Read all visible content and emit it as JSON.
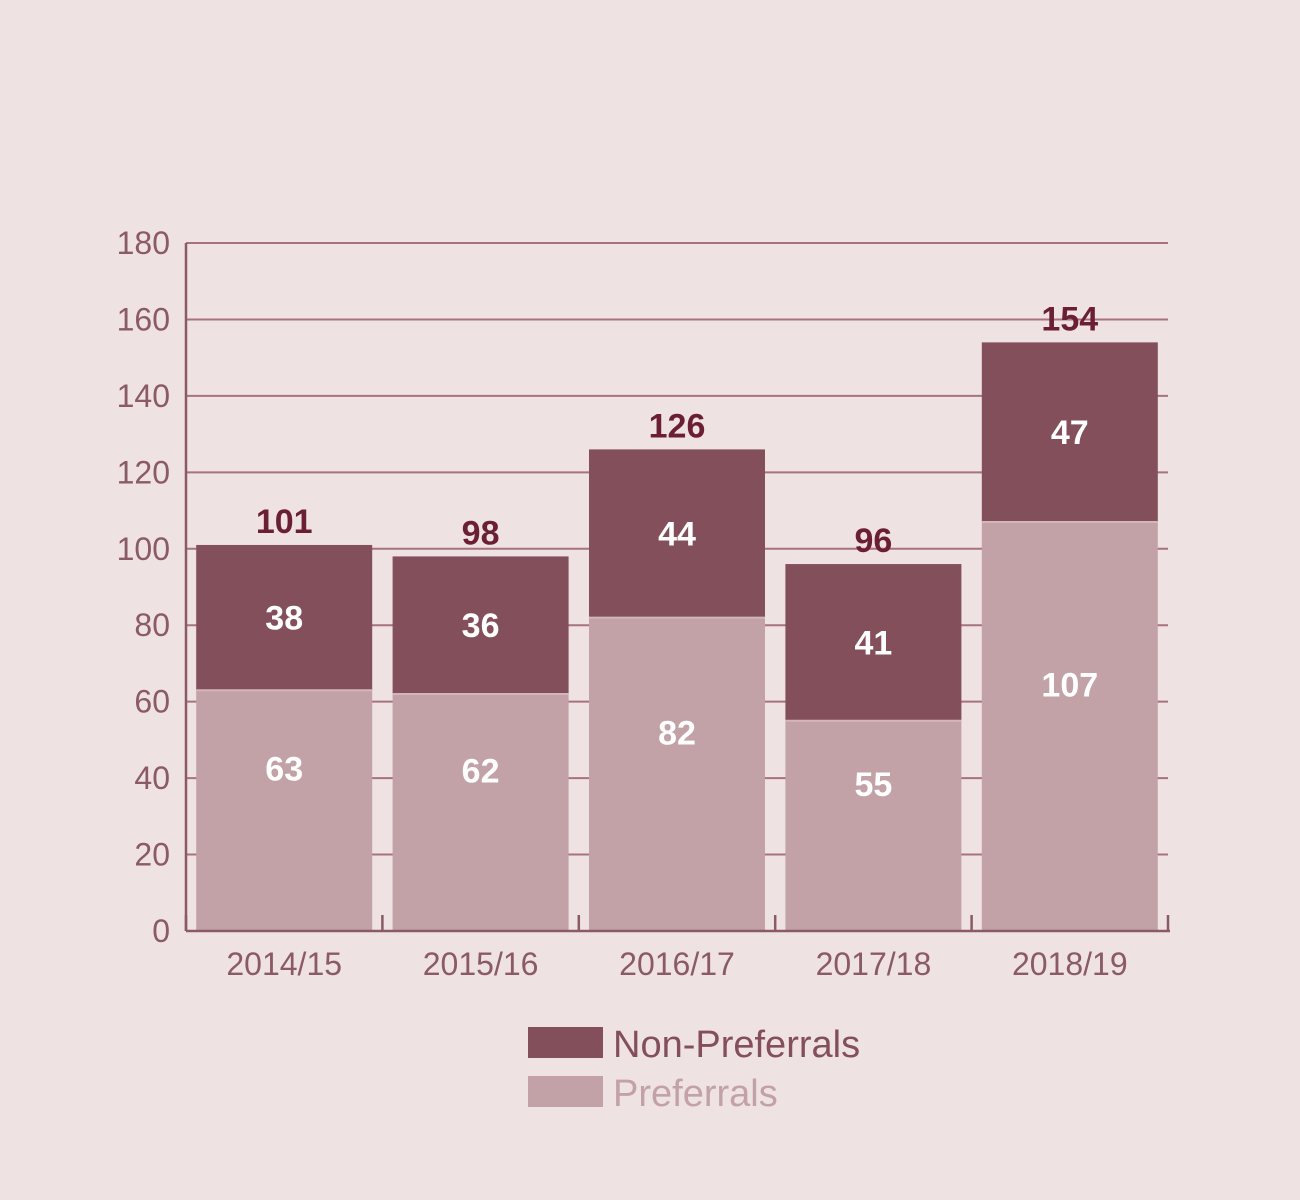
{
  "chart_data": {
    "type": "bar",
    "stacked": true,
    "categories": [
      "2014/15",
      "2015/16",
      "2016/17",
      "2017/18",
      "2018/19"
    ],
    "series": [
      {
        "name": "Preferrals",
        "values": [
          63,
          62,
          82,
          55,
          107
        ],
        "color": "#c2a2a7"
      },
      {
        "name": "Non-Preferrals",
        "values": [
          38,
          36,
          44,
          41,
          47
        ],
        "color": "#834f5b"
      }
    ],
    "totals": [
      101,
      98,
      126,
      96,
      154
    ],
    "ylim": [
      0,
      180
    ],
    "yticks": [
      0,
      20,
      40,
      60,
      80,
      100,
      120,
      140,
      160,
      180
    ],
    "grid": true,
    "legend": {
      "placement": "bottom-center",
      "items": [
        {
          "label": "Non-Preferrals",
          "color": "#834f5b",
          "text_color": "#834f5b"
        },
        {
          "label": "Preferrals",
          "color": "#c2a2a7",
          "text_color": "#c2a2a7"
        }
      ]
    },
    "colors": {
      "grid": "#a8727d",
      "axis": "#8a5a66",
      "tick_text": "#8a5a66",
      "total_text": "#6b1f35",
      "segment_text": "#ffffff",
      "background": "#efe2e3"
    }
  }
}
